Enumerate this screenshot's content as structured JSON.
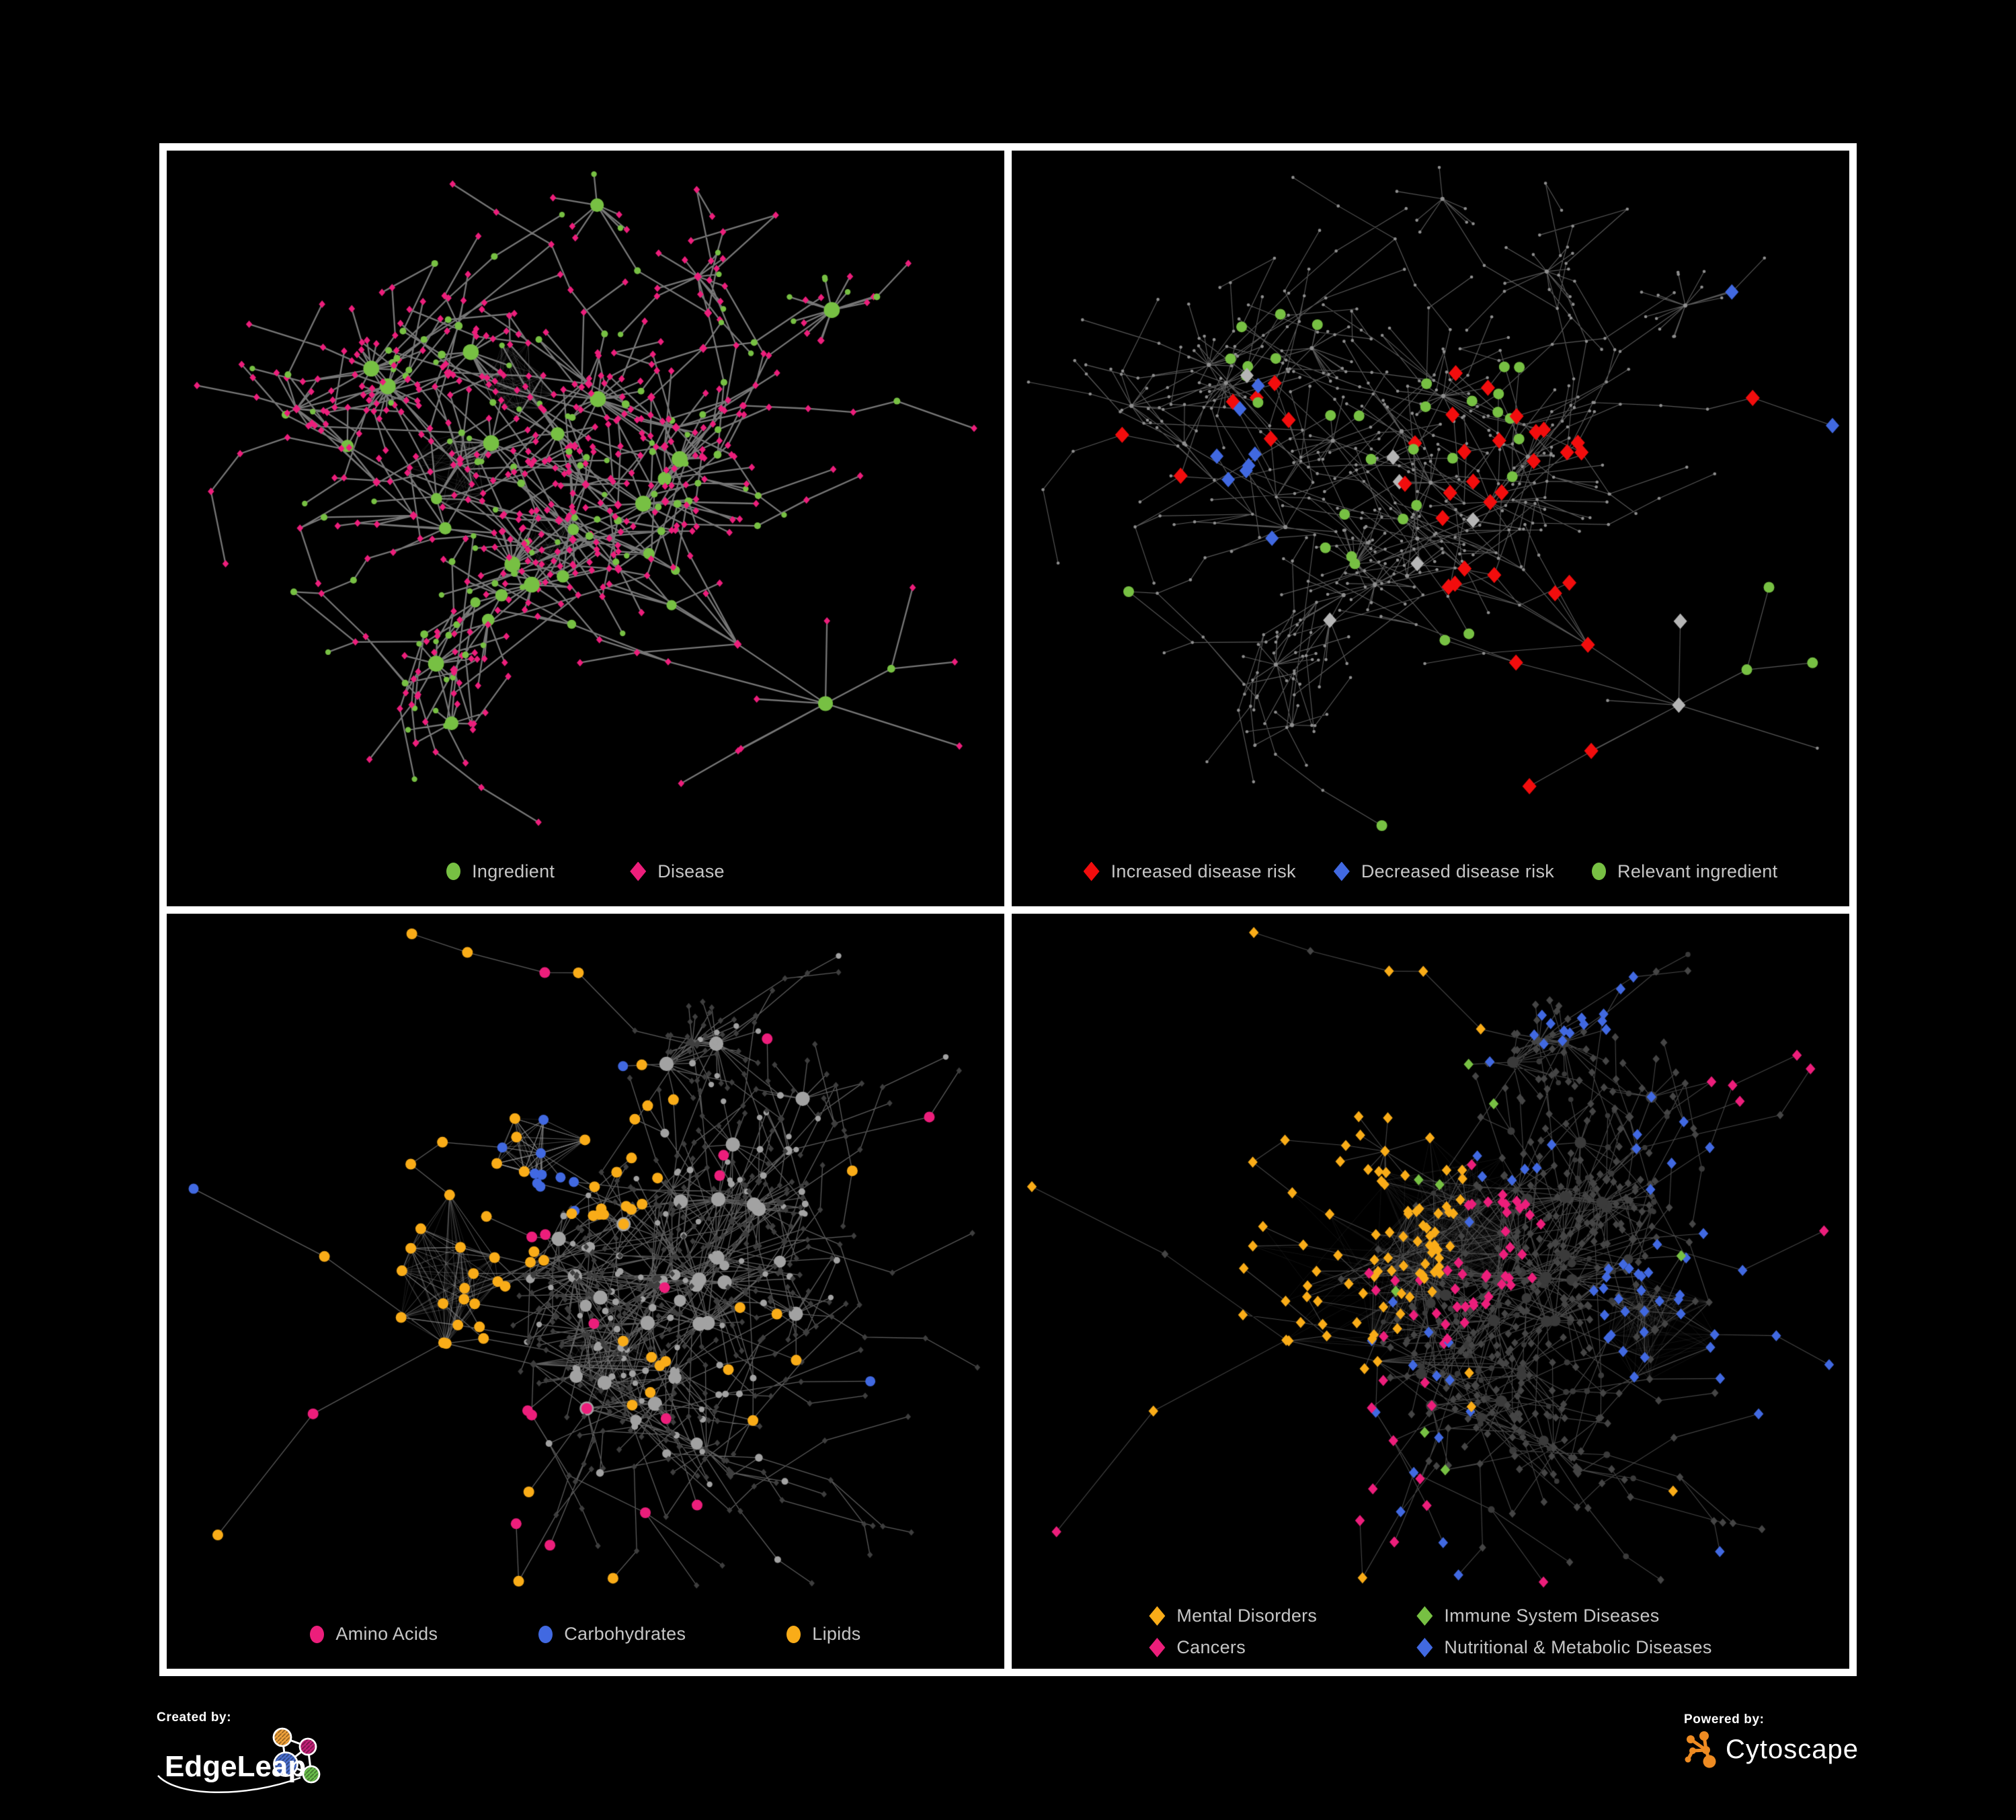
{
  "page": {
    "background": "#000000",
    "frame_color": "#ffffff"
  },
  "palette": {
    "green": "#77C043",
    "pink": "#EC1E7B",
    "red": "#F20D0D",
    "blue": "#4169E1",
    "orange": "#F9AC18",
    "silver": "#B5B5B5",
    "legend_text": "#C6C6C6"
  },
  "branding": {
    "created_by_label": "Created by:",
    "created_by_name": "EdgeLeap",
    "powered_by_label": "Powered by:",
    "powered_by_name": "Cytoscape",
    "edgeleap_node_colors": {
      "orange": "#F2A33A",
      "magenta": "#C32178",
      "blue": "#4A6FD0",
      "green": "#6ABF4B"
    },
    "cytoscape_orange": "#EE8B22"
  },
  "chart_data": [
    {
      "type": "network",
      "id": "ingredient-disease",
      "description": "Ingredient-disease association network: green circle nodes are ingredients, pink diamond nodes are diseases, gray edges are associations.",
      "legend": [
        {
          "label": "Ingredient",
          "shape": "circle",
          "color": "#77C043"
        },
        {
          "label": "Disease",
          "shape": "diamond",
          "color": "#EC1E7B"
        }
      ],
      "render": {
        "pair": "A",
        "seed": 11,
        "typeSeed": 101,
        "hlSeed": 3,
        "nodes": 640,
        "step": 46,
        "chain": 0.36,
        "hub": 0.2,
        "hubPool": 40,
        "burst": 0.05,
        "cross": 0.05,
        "margin": 45,
        "marginTop": 35,
        "marginBottom": 125,
        "edgeColor": "#848484",
        "edgeWidth": 2.3,
        "edgeAlpha": 0.9,
        "style": "two-class",
        "classA": {
          "shape": "circle",
          "color": "#77C043",
          "rBase": 4.2,
          "rDeg": 0.85,
          "degCap": 9
        },
        "classB": {
          "shape": "diamond",
          "color": "#EC1E7B",
          "s": 4.8
        },
        "webs": [
          [
            0.42,
            0.3,
            0.05,
            140
          ],
          [
            0.34,
            0.42,
            0.05,
            110
          ],
          [
            0.47,
            0.52,
            0.04,
            70
          ]
        ]
      }
    },
    {
      "type": "network",
      "id": "disease-risk",
      "description": "Same network de-emphasized in gray; highlighted nodes show disease-risk effects of ingredients.",
      "legend": [
        {
          "label": "Increased disease risk",
          "shape": "diamond",
          "color": "#F20D0D"
        },
        {
          "label": "Decreased disease risk",
          "shape": "diamond",
          "color": "#4169E1"
        },
        {
          "label": "Relevant ingredient",
          "shape": "circle",
          "color": "#77C043"
        }
      ],
      "render": {
        "pair": "A",
        "seed": 11,
        "typeSeed": 101,
        "hlSeed": 5,
        "nodes": 640,
        "step": 46,
        "chain": 0.36,
        "hub": 0.2,
        "hubPool": 40,
        "burst": 0.05,
        "cross": 0.05,
        "margin": 25,
        "marginTop": 25,
        "marginBottom": 120,
        "edgeColor": "#6E6E6E",
        "edgeWidth": 1.15,
        "edgeAlpha": 0.8,
        "style": "dots",
        "dot": {
          "color": "#8F8F8F",
          "r": 2.3
        },
        "clusters": [
          {
            "shape": "circle",
            "color": "#77C043",
            "size": 8,
            "spots": [
              [
                0.3,
                0.3,
                0.1,
                9
              ],
              [
                0.53,
                0.38,
                0.12,
                16
              ],
              [
                0.36,
                0.52,
                0.06,
                4
              ],
              [
                0.86,
                0.52,
                0.02,
                1
              ],
              [
                0.13,
                0.58,
                0.02,
                1
              ],
              [
                0.5,
                0.72,
                0.03,
                2
              ],
              [
                0.47,
                0.86,
                0.02,
                1
              ],
              [
                0.93,
                0.6,
                0.03,
                2
              ]
            ]
          },
          {
            "shape": "diamond",
            "color": "#F20D0D",
            "size": 10.5,
            "spots": [
              [
                0.54,
                0.4,
                0.1,
                16
              ],
              [
                0.3,
                0.37,
                0.06,
                5
              ],
              [
                0.65,
                0.38,
                0.04,
                3
              ],
              [
                0.22,
                0.44,
                0.02,
                1
              ],
              [
                0.55,
                0.6,
                0.05,
                4
              ],
              [
                0.7,
                0.6,
                0.04,
                3
              ],
              [
                0.62,
                0.75,
                0.03,
                3
              ],
              [
                0.85,
                0.3,
                0.02,
                1
              ],
              [
                0.13,
                0.37,
                0.02,
                1
              ]
            ]
          },
          {
            "shape": "diamond",
            "color": "#4169E1",
            "size": 10,
            "spots": [
              [
                0.26,
                0.44,
                0.05,
                5
              ],
              [
                0.28,
                0.33,
                0.03,
                2
              ],
              [
                0.935,
                0.275,
                0.025,
                2
              ],
              [
                0.3,
                0.52,
                0.02,
                1
              ]
            ]
          },
          {
            "shape": "diamond",
            "color": "#B5B5B5",
            "size": 10,
            "spots": [
              [
                0.295,
                0.3,
                0.02,
                1
              ],
              [
                0.44,
                0.43,
                0.03,
                2
              ],
              [
                0.56,
                0.49,
                0.02,
                1
              ],
              [
                0.36,
                0.62,
                0.02,
                1
              ],
              [
                0.72,
                0.6,
                0.02,
                1
              ],
              [
                0.78,
                0.68,
                0.02,
                1
              ],
              [
                0.5,
                0.55,
                0.02,
                1
              ]
            ]
          }
        ]
      }
    },
    {
      "type": "network",
      "id": "nutrient-classes",
      "description": "Ingredient network in gray; ingredient circles highlighted by nutrient class.",
      "legend": [
        {
          "label": "Amino Acids",
          "shape": "circle",
          "color": "#EC1E7B"
        },
        {
          "label": "Carbohydrates",
          "shape": "circle",
          "color": "#4169E1"
        },
        {
          "label": "Lipids",
          "shape": "circle",
          "color": "#F9AC18"
        }
      ],
      "render": {
        "pair": "B",
        "seed": 23,
        "typeSeed": 202,
        "hlSeed": 9,
        "nodes": 730,
        "step": 42,
        "chain": 0.33,
        "hub": 0.24,
        "hubPool": 36,
        "burst": 0.055,
        "cross": 0.07,
        "margin": 40,
        "marginTop": 30,
        "marginBottom": 125,
        "edgeColor": "#9A9A9A",
        "edgeWidth": 1.3,
        "edgeAlpha": 0.6,
        "style": "two-class",
        "classA": {
          "shape": "circle",
          "color": "#A2A2A2",
          "rBase": 4.2,
          "rDeg": 0.8,
          "degCap": 8
        },
        "classB": {
          "shape": "diamond",
          "color": "#3E3E3E",
          "s": 4.2
        },
        "webs": [
          [
            0.3,
            0.47,
            0.1,
            260
          ],
          [
            0.42,
            0.26,
            0.09,
            220
          ],
          [
            0.16,
            0.4,
            0.06,
            90
          ],
          [
            0.52,
            0.6,
            0.06,
            120
          ]
        ],
        "clusters": [
          {
            "shape": "circle",
            "color": "#F9AC18",
            "size": 8,
            "spots": [
              [
                0.42,
                0.255,
                0.09,
                26
              ],
              [
                0.32,
                0.47,
                0.1,
                16
              ],
              [
                0.56,
                0.6,
                0.05,
                6
              ],
              [
                0.7,
                0.6,
                0.08,
                5
              ],
              [
                0.25,
                0.7,
                0.03,
                2
              ],
              [
                0.18,
                0.9,
                0.02,
                2
              ],
              [
                0.55,
                0.9,
                0.02,
                1
              ],
              [
                0.22,
                0.26,
                0.04,
                3
              ],
              [
                0.12,
                0.3,
                0.03,
                2
              ],
              [
                0.33,
                0.1,
                0.03,
                2
              ],
              [
                0.5,
                0.04,
                0.02,
                1
              ],
              [
                0.85,
                0.35,
                0.02,
                1
              ]
            ]
          },
          {
            "shape": "circle",
            "color": "#4169E1",
            "size": 7.5,
            "spots": [
              [
                0.455,
                0.245,
                0.055,
                9
              ],
              [
                0.25,
                0.33,
                0.02,
                1
              ],
              [
                0.86,
                0.62,
                0.02,
                1
              ],
              [
                0.43,
                0.37,
                0.02,
                1
              ],
              [
                0.1,
                0.27,
                0.02,
                1
              ]
            ]
          },
          {
            "shape": "circle",
            "color": "#EC1E7B",
            "size": 8,
            "spots": [
              [
                0.74,
                0.17,
                0.03,
                1
              ],
              [
                0.47,
                0.02,
                0.02,
                1
              ],
              [
                0.2,
                0.3,
                0.03,
                2
              ],
              [
                0.13,
                0.52,
                0.02,
                1
              ],
              [
                0.55,
                0.43,
                0.25,
                4
              ],
              [
                0.3,
                0.78,
                0.04,
                2
              ],
              [
                0.42,
                0.68,
                0.03,
                2
              ],
              [
                0.6,
                0.78,
                0.04,
                2
              ],
              [
                0.95,
                0.32,
                0.02,
                1
              ],
              [
                0.5,
                0.55,
                0.03,
                1
              ],
              [
                0.65,
                0.3,
                0.03,
                1
              ]
            ]
          }
        ]
      }
    },
    {
      "type": "network",
      "id": "disease-categories",
      "description": "Disease network in dark gray; disease diamonds highlighted by disease category.",
      "legend": [
        {
          "label": "Mental Disorders",
          "shape": "diamond",
          "color": "#F9AC18"
        },
        {
          "label": "Immune System Diseases",
          "shape": "diamond",
          "color": "#77C043"
        },
        {
          "label": "Cancers",
          "shape": "diamond",
          "color": "#EC1E7B"
        },
        {
          "label": "Nutritional & Metabolic Diseases",
          "shape": "diamond",
          "color": "#4169E1"
        }
      ],
      "render": {
        "pair": "B",
        "seed": 23,
        "typeSeed": 202,
        "hlSeed": 13,
        "nodes": 730,
        "step": 42,
        "chain": 0.33,
        "hub": 0.24,
        "hubPool": 36,
        "burst": 0.055,
        "cross": 0.07,
        "margin": 30,
        "marginTop": 28,
        "marginBottom": 130,
        "edgeColor": "#5E5E5E",
        "edgeWidth": 1.1,
        "edgeAlpha": 0.75,
        "style": "two-class",
        "classA": {
          "shape": "circle",
          "color": "#3A3A3A",
          "rBase": 3.8,
          "rDeg": 0.6,
          "degCap": 8
        },
        "classB": {
          "shape": "diamond",
          "color": "#454545",
          "s": 5.3
        },
        "webs": [
          [
            0.16,
            0.3,
            0.08,
            260
          ],
          [
            0.52,
            0.4,
            0.1,
            300
          ],
          [
            0.78,
            0.55,
            0.07,
            200
          ],
          [
            0.4,
            0.47,
            0.12,
            150
          ],
          [
            0.86,
            0.13,
            0.04,
            80
          ]
        ],
        "clusters": [
          {
            "shape": "diamond",
            "color": "#F9AC18",
            "size": 7.2,
            "spots": [
              [
                0.15,
                0.3,
                0.13,
                75
              ],
              [
                0.33,
                0.3,
                0.05,
                5
              ],
              [
                0.3,
                0.45,
                0.06,
                6
              ],
              [
                0.12,
                0.55,
                0.04,
                3
              ],
              [
                0.3,
                0.08,
                0.03,
                3
              ],
              [
                0.55,
                0.62,
                0.03,
                2
              ],
              [
                0.3,
                0.85,
                0.02,
                1
              ],
              [
                0.8,
                0.78,
                0.02,
                1
              ]
            ]
          },
          {
            "shape": "diamond",
            "color": "#EC1E7B",
            "size": 7.2,
            "spots": [
              [
                0.52,
                0.42,
                0.12,
                42
              ],
              [
                0.28,
                0.78,
                0.05,
                6
              ],
              [
                0.9,
                0.17,
                0.04,
                5
              ],
              [
                0.48,
                0.6,
                0.06,
                6
              ],
              [
                0.97,
                0.35,
                0.02,
                1
              ],
              [
                0.2,
                0.95,
                0.02,
                2
              ],
              [
                0.6,
                0.9,
                0.02,
                1
              ]
            ]
          },
          {
            "shape": "diamond",
            "color": "#4169E1",
            "size": 7.2,
            "spots": [
              [
                0.79,
                0.53,
                0.1,
                30
              ],
              [
                0.7,
                0.1,
                0.07,
                10
              ],
              [
                0.87,
                0.3,
                0.06,
                8
              ],
              [
                0.6,
                0.3,
                0.05,
                5
              ],
              [
                0.4,
                0.65,
                0.15,
                8
              ],
              [
                0.95,
                0.55,
                0.03,
                3
              ],
              [
                0.55,
                0.05,
                0.05,
                4
              ],
              [
                0.25,
                0.6,
                0.05,
                3
              ],
              [
                0.45,
                0.9,
                0.03,
                2
              ],
              [
                0.85,
                0.9,
                0.02,
                1
              ],
              [
                0.08,
                0.83,
                0.02,
                1
              ],
              [
                0.13,
                0.1,
                0.04,
                3
              ]
            ]
          },
          {
            "shape": "diamond",
            "color": "#77C043",
            "size": 7.2,
            "spots": [
              [
                0.5,
                0.3,
                0.03,
                2
              ],
              [
                0.45,
                0.5,
                0.02,
                1
              ],
              [
                0.4,
                0.2,
                0.02,
                1
              ],
              [
                0.37,
                0.95,
                0.02,
                1
              ],
              [
                0.8,
                0.47,
                0.02,
                1
              ],
              [
                0.52,
                0.2,
                0.02,
                1
              ],
              [
                0.25,
                0.92,
                0.02,
                1
              ]
            ]
          }
        ]
      }
    }
  ]
}
